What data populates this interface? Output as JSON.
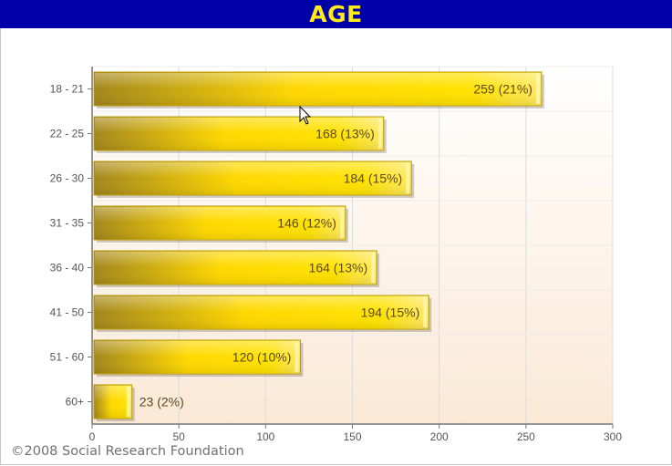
{
  "header": {
    "title": "AGE"
  },
  "footer": {
    "copyright": "©2008 Social Research Foundation"
  },
  "colors": {
    "title_bg": "#0000a8",
    "title_text": "#ffeb1a",
    "bar_light": "#ffdd00",
    "bar_dark": "#a88a1a",
    "plot_bg_bottom": "#fbe9d6"
  },
  "chart_data": {
    "type": "bar",
    "orientation": "horizontal",
    "categories": [
      "18 - 21",
      "22 - 25",
      "26 - 30",
      "31 - 35",
      "36 - 40",
      "41 - 50",
      "51 - 60",
      "60+"
    ],
    "values": [
      259,
      168,
      184,
      146,
      164,
      194,
      120,
      23
    ],
    "data_labels": [
      "259 (21%)",
      "168 (13%)",
      "184 (15%)",
      "146 (12%)",
      "164 (13%)",
      "194 (15%)",
      "120 (10%)",
      "23 (2%)"
    ],
    "xlim": [
      0,
      300
    ],
    "xticks": [
      0,
      50,
      100,
      150,
      200,
      250,
      300
    ],
    "grid": true
  }
}
